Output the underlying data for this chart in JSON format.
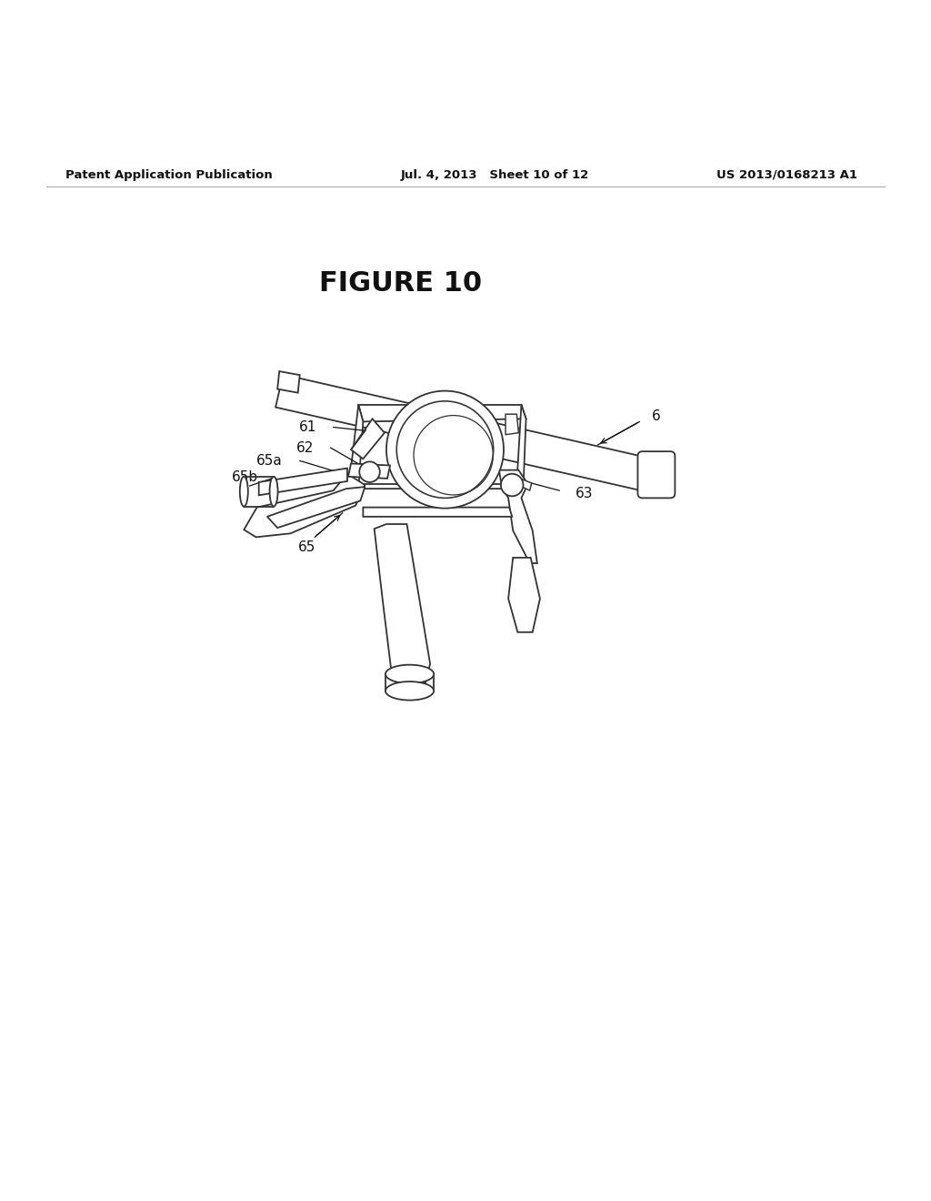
{
  "background_color": "#ffffff",
  "line_color": "#333333",
  "text_color": "#111111",
  "header_left": "Patent Application Publication",
  "header_center": "Jul. 4, 2013   Sheet 10 of 12",
  "header_right": "US 2013/0168213 A1",
  "figure_title": "FIGURE 10",
  "lw_main": 1.3,
  "label_fontsize": 11
}
